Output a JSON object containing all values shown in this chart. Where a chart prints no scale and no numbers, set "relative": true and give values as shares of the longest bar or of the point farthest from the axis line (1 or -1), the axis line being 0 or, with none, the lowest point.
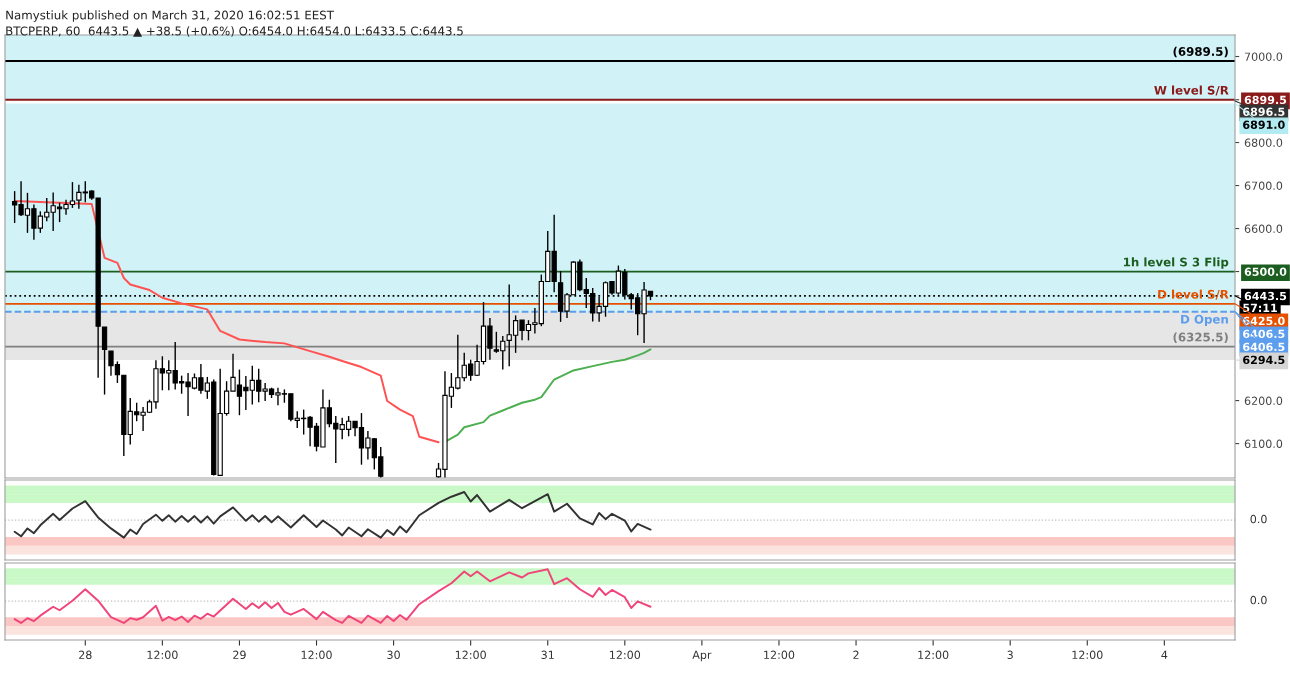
{
  "chart_data": [
    {
      "type": "candlestick",
      "title": "Namystiuk published on March 31, 2020 16:02:51 EEST",
      "subtitle": "BTCPERP, 60  6443.5 ▲ +38.5 (+0.6%) O:6454.0 H:6454.0 L:6433.5 C:6443.5",
      "x": [
        "2020-03-27T13:00",
        "2020-03-27T14:00",
        "2020-03-27T15:00",
        "2020-03-27T16:00",
        "2020-03-27T17:00",
        "2020-03-27T18:00",
        "2020-03-27T19:00",
        "2020-03-27T20:00",
        "2020-03-27T21:00",
        "2020-03-27T22:00",
        "2020-03-27T23:00",
        "2020-03-28T00:00",
        "2020-03-28T01:00",
        "2020-03-28T02:00",
        "2020-03-28T03:00",
        "2020-03-28T04:00",
        "2020-03-28T05:00",
        "2020-03-28T06:00",
        "2020-03-28T07:00",
        "2020-03-28T08:00",
        "2020-03-28T09:00",
        "2020-03-28T10:00",
        "2020-03-28T11:00",
        "2020-03-28T12:00",
        "2020-03-28T13:00",
        "2020-03-28T14:00",
        "2020-03-28T15:00",
        "2020-03-28T16:00",
        "2020-03-28T17:00",
        "2020-03-28T18:00",
        "2020-03-28T19:00",
        "2020-03-28T20:00",
        "2020-03-28T21:00",
        "2020-03-28T22:00",
        "2020-03-28T23:00",
        "2020-03-29T00:00",
        "2020-03-29T01:00",
        "2020-03-29T02:00",
        "2020-03-29T03:00",
        "2020-03-29T04:00",
        "2020-03-29T05:00",
        "2020-03-29T06:00",
        "2020-03-29T07:00",
        "2020-03-29T08:00",
        "2020-03-29T09:00",
        "2020-03-29T10:00",
        "2020-03-29T11:00",
        "2020-03-29T12:00",
        "2020-03-29T13:00",
        "2020-03-29T14:00",
        "2020-03-29T15:00",
        "2020-03-29T16:00",
        "2020-03-29T17:00",
        "2020-03-29T18:00",
        "2020-03-29T19:00",
        "2020-03-29T20:00",
        "2020-03-29T21:00",
        "2020-03-29T22:00",
        "2020-03-30T07:00",
        "2020-03-30T08:00",
        "2020-03-30T09:00",
        "2020-03-30T10:00",
        "2020-03-30T11:00",
        "2020-03-30T12:00",
        "2020-03-30T13:00",
        "2020-03-30T14:00",
        "2020-03-30T15:00",
        "2020-03-30T16:00",
        "2020-03-30T17:00",
        "2020-03-30T18:00",
        "2020-03-30T19:00",
        "2020-03-30T20:00",
        "2020-03-30T21:00",
        "2020-03-30T22:00",
        "2020-03-30T23:00",
        "2020-03-31T00:00",
        "2020-03-31T01:00",
        "2020-03-31T02:00",
        "2020-03-31T03:00",
        "2020-03-31T04:00",
        "2020-03-31T05:00",
        "2020-03-31T06:00",
        "2020-03-31T07:00",
        "2020-03-31T08:00",
        "2020-03-31T09:00",
        "2020-03-31T10:00",
        "2020-03-31T11:00",
        "2020-03-31T12:00",
        "2020-03-31T13:00",
        "2020-03-31T14:00",
        "2020-03-31T15:00",
        "2020-03-31T16:00"
      ],
      "ohlc": [
        [
          6663,
          6687,
          6613,
          6655
        ],
        [
          6656,
          6710,
          6629,
          6632
        ],
        [
          6631,
          6683,
          6590,
          6646
        ],
        [
          6646,
          6656,
          6574,
          6601
        ],
        [
          6601,
          6640,
          6590,
          6629
        ],
        [
          6627,
          6671,
          6617,
          6638
        ],
        [
          6638,
          6684,
          6594,
          6653
        ],
        [
          6650,
          6660,
          6615,
          6646
        ],
        [
          6646,
          6667,
          6632,
          6656
        ],
        [
          6656,
          6708,
          6648,
          6664
        ],
        [
          6666,
          6702,
          6646,
          6684
        ],
        [
          6685,
          6710,
          6661,
          6683
        ],
        [
          6687,
          6689,
          6667,
          6671
        ],
        [
          6671,
          6671,
          6253,
          6373
        ],
        [
          6371,
          6371,
          6214,
          6319
        ],
        [
          6315,
          6315,
          6258,
          6281
        ],
        [
          6284,
          6291,
          6241,
          6260
        ],
        [
          6259,
          6259,
          6071,
          6121
        ],
        [
          6121,
          6206,
          6098,
          6175
        ],
        [
          6174,
          6195,
          6152,
          6167
        ],
        [
          6166,
          6185,
          6129,
          6173
        ],
        [
          6173,
          6202,
          6171,
          6197
        ],
        [
          6197,
          6294,
          6181,
          6274
        ],
        [
          6274,
          6303,
          6224,
          6264
        ],
        [
          6264,
          6294,
          6224,
          6270
        ],
        [
          6270,
          6336,
          6226,
          6241
        ],
        [
          6244,
          6258,
          6216,
          6241
        ],
        [
          6243,
          6264,
          6164,
          6232
        ],
        [
          6229,
          6263,
          6226,
          6253
        ],
        [
          6253,
          6285,
          6216,
          6224
        ],
        [
          6222,
          6255,
          6204,
          6241
        ],
        [
          6243,
          6249,
          6026,
          6028
        ],
        [
          6026,
          6274,
          6026,
          6170
        ],
        [
          6170,
          6245,
          6165,
          6222
        ],
        [
          6222,
          6309,
          6222,
          6254
        ],
        [
          6236,
          6272,
          6166,
          6210
        ],
        [
          6231,
          6257,
          6178,
          6223
        ],
        [
          6224,
          6281,
          6191,
          6247
        ],
        [
          6247,
          6274,
          6196,
          6222
        ],
        [
          6222,
          6241,
          6199,
          6227
        ],
        [
          6227,
          6230,
          6206,
          6214
        ],
        [
          6213,
          6230,
          6189,
          6218
        ],
        [
          6216,
          6226,
          6195,
          6215
        ],
        [
          6216,
          6216,
          6152,
          6157
        ],
        [
          6154,
          6175,
          6136,
          6159
        ],
        [
          6159,
          6179,
          6121,
          6158
        ],
        [
          6161,
          6164,
          6094,
          6138
        ],
        [
          6140,
          6148,
          6082,
          6094
        ],
        [
          6092,
          6226,
          6092,
          6183
        ],
        [
          6183,
          6202,
          6138,
          6146
        ],
        [
          6147,
          6164,
          6055,
          6134
        ],
        [
          6133,
          6160,
          6110,
          6144
        ],
        [
          6133,
          6164,
          6117,
          6152
        ],
        [
          6152,
          6152,
          6117,
          6137
        ],
        [
          6137,
          6171,
          6051,
          6090
        ],
        [
          6090,
          6129,
          6063,
          6113
        ],
        [
          6111,
          6113,
          6040,
          6067
        ],
        [
          6069,
          6092,
          6021,
          6024
        ],
        [
          6023,
          6055,
          6021,
          6041
        ],
        [
          6040,
          6268,
          6021,
          6212
        ],
        [
          6210,
          6264,
          6183,
          6231
        ],
        [
          6229,
          6353,
          6226,
          6253
        ],
        [
          6253,
          6311,
          6245,
          6282
        ],
        [
          6285,
          6295,
          6246,
          6259
        ],
        [
          6259,
          6330,
          6257,
          6291
        ],
        [
          6291,
          6429,
          6284,
          6373
        ],
        [
          6373,
          6392,
          6295,
          6322
        ],
        [
          6318,
          6360,
          6311,
          6315
        ],
        [
          6316,
          6350,
          6272,
          6338
        ],
        [
          6340,
          6470,
          6280,
          6353
        ],
        [
          6352,
          6398,
          6311,
          6386
        ],
        [
          6387,
          6387,
          6340,
          6363
        ],
        [
          6363,
          6387,
          6340,
          6377
        ],
        [
          6377,
          6415,
          6356,
          6381
        ],
        [
          6379,
          6493,
          6373,
          6477
        ],
        [
          6477,
          6594,
          6477,
          6547
        ],
        [
          6547,
          6632,
          6452,
          6477
        ],
        [
          6474,
          6501,
          6383,
          6408
        ],
        [
          6408,
          6450,
          6392,
          6446
        ],
        [
          6446,
          6524,
          6446,
          6522
        ],
        [
          6522,
          6528,
          6454,
          6458
        ],
        [
          6458,
          6485,
          6415,
          6449
        ],
        [
          6449,
          6462,
          6384,
          6404
        ],
        [
          6404,
          6441,
          6383,
          6419
        ],
        [
          6419,
          6477,
          6395,
          6474
        ],
        [
          6477,
          6477,
          6446,
          6450
        ],
        [
          6450,
          6514,
          6446,
          6501
        ],
        [
          6498,
          6506,
          6435,
          6446
        ],
        [
          6446,
          6450,
          6412,
          6437
        ],
        [
          6439,
          6450,
          6352,
          6402
        ],
        [
          6402,
          6476,
          6334,
          6457
        ],
        [
          6454,
          6454,
          6433.5,
          6443.5
        ]
      ],
      "series": [
        {
          "type": "line",
          "color": "#ff5252",
          "x": [
            "2020-03-27T13:00",
            "2020-03-28T01:00",
            "2020-03-28T03:00",
            "2020-03-28T05:00",
            "2020-03-28T06:00",
            "2020-03-28T07:00",
            "2020-03-28T10:00",
            "2020-03-28T12:00",
            "2020-03-28T15:00",
            "2020-03-28T19:00",
            "2020-03-28T21:00",
            "2020-03-29T00:00",
            "2020-03-29T04:00",
            "2020-03-29T07:00",
            "2020-03-29T11:00",
            "2020-03-29T14:00",
            "2020-03-29T16:00",
            "2020-03-29T19:00",
            "2020-03-29T22:00",
            "2020-03-29T23:00",
            "2020-03-30T01:00",
            "2020-03-30T03:00",
            "2020-03-30T04:00",
            "2020-03-30T07:00"
          ],
          "values": [
            6664,
            6657,
            6532,
            6520,
            6485,
            6470,
            6457,
            6439,
            6426,
            6412,
            6362,
            6342,
            6336,
            6333,
            6315,
            6302,
            6292,
            6278,
            6258,
            6199,
            6179,
            6164,
            6116,
            6103
          ]
        },
        {
          "type": "line",
          "color": "#4caf50",
          "x": [
            "2020-03-30T08:00",
            "2020-03-30T10:00",
            "2020-03-30T11:00",
            "2020-03-30T14:00",
            "2020-03-30T15:00",
            "2020-03-30T17:00",
            "2020-03-30T20:00",
            "2020-03-30T22:00",
            "2020-03-30T23:00",
            "2020-03-31T01:00",
            "2020-03-31T04:00",
            "2020-03-31T07:00",
            "2020-03-31T10:00",
            "2020-03-31T12:00",
            "2020-03-31T14:00",
            "2020-03-31T15:00",
            "2020-03-31T16:00"
          ],
          "values": [
            6104,
            6121,
            6138,
            6150,
            6165,
            6177,
            6195,
            6202,
            6208,
            6249,
            6270,
            6280,
            6290,
            6295,
            6305,
            6311,
            6319
          ]
        }
      ],
      "xlim": [
        "2020-03-27T11:30",
        "2020-04-04T11:00"
      ],
      "ylim": [
        6020,
        7050
      ],
      "yticks": [
        {
          "value": 6100,
          "label": "6100.0"
        },
        {
          "value": 6200,
          "label": "6200.0"
        },
        {
          "value": 6443.5,
          "label": "6443.5"
        },
        {
          "value": 6500,
          "label": "6500.0"
        },
        {
          "value": 6600,
          "label": "6600.0"
        },
        {
          "value": 6700,
          "label": "6700.0"
        },
        {
          "value": 6800,
          "label": "6800.0"
        },
        {
          "value": 6899.5,
          "label": "6899.5"
        },
        {
          "value": 7000,
          "label": "7000.0"
        }
      ],
      "tick_labels": "y",
      "bands": [
        {
          "axis": "y",
          "from": 6406.5,
          "to": 6891,
          "color": "#b2ebf2"
        },
        {
          "axis": "y",
          "from": 6294.5,
          "to": 6406.5,
          "color": "#d6d6d6"
        },
        {
          "axis": "y",
          "from": 6899.5,
          "to": 7050,
          "color": "#b2ebf2"
        }
      ],
      "ref_lines": [
        {
          "axis": "y",
          "value": 6989.5,
          "label": "(6989.5)",
          "color": "#000000"
        },
        {
          "axis": "y",
          "value": 6899.5,
          "label": "W level S/R",
          "color": "#8b1a1a"
        },
        {
          "axis": "y",
          "value": 6500,
          "label": "1h level S 3 Flip",
          "color": "#1b5e20"
        },
        {
          "axis": "y",
          "value": 6443.5,
          "color": "#000000",
          "line_style": "dotted"
        },
        {
          "axis": "y",
          "value": 6425,
          "label": "D level S/R",
          "color": "#e65100"
        },
        {
          "axis": "y",
          "value": 6406.5,
          "label": "D Open",
          "color": "#5c9ded",
          "line_style": "dashed"
        },
        {
          "axis": "y",
          "value": 6325.5,
          "label": "(6325.5)",
          "color": "#808080"
        }
      ],
      "annotations": [
        {
          "text": "6896.5",
          "x": "2020-04-04T11:00",
          "y": 6896.5
        },
        {
          "text": "6891.0",
          "x": "2020-04-04T11:00",
          "y": 6891
        },
        {
          "text": "57:11",
          "x": "2020-04-04T11:00",
          "y": 6443.5
        },
        {
          "text": "6425.0",
          "x": "2020-04-04T11:00",
          "y": 6425
        },
        {
          "text": "6406.5",
          "x": "2020-04-04T11:00",
          "y": 6406.5
        },
        {
          "text": "6406.5",
          "x": "2020-04-04T11:00",
          "y": 6406.5
        },
        {
          "text": "6294.5",
          "x": "2020-04-04T11:00",
          "y": 6294.5
        }
      ]
    },
    {
      "type": "line",
      "relative": true,
      "tick_labels": false,
      "xlim": [
        "2020-03-27T11:30",
        "2020-04-04T11:00"
      ],
      "series": [
        {
          "color": "#333333",
          "x": [
            "2020-03-27T13:00",
            "2020-03-27T14:00",
            "2020-03-27T15:00",
            "2020-03-27T16:00",
            "2020-03-27T17:00",
            "2020-03-27T19:00",
            "2020-03-27T20:00",
            "2020-03-27T22:00",
            "2020-03-28T00:00",
            "2020-03-28T02:00",
            "2020-03-28T04:00",
            "2020-03-28T06:00",
            "2020-03-28T07:00",
            "2020-03-28T08:00",
            "2020-03-28T09:00",
            "2020-03-28T11:00",
            "2020-03-28T12:00",
            "2020-03-28T13:00",
            "2020-03-28T14:00",
            "2020-03-28T15:00",
            "2020-03-28T16:00",
            "2020-03-28T17:00",
            "2020-03-28T18:00",
            "2020-03-28T19:00",
            "2020-03-28T20:00",
            "2020-03-28T21:00",
            "2020-03-28T23:00",
            "2020-03-29T01:00",
            "2020-03-29T02:00",
            "2020-03-29T03:00",
            "2020-03-29T04:00",
            "2020-03-29T05:00",
            "2020-03-29T06:00",
            "2020-03-29T08:00",
            "2020-03-29T10:00",
            "2020-03-29T12:00",
            "2020-03-29T13:00",
            "2020-03-29T15:00",
            "2020-03-29T16:00",
            "2020-03-29T17:00",
            "2020-03-29T19:00",
            "2020-03-29T20:00",
            "2020-03-29T22:00",
            "2020-03-29T23:00",
            "2020-03-30T00:00",
            "2020-03-30T01:00",
            "2020-03-30T02:00",
            "2020-03-30T04:00",
            "2020-03-30T07:00",
            "2020-03-30T09:00",
            "2020-03-30T11:00",
            "2020-03-30T12:00",
            "2020-03-30T13:00",
            "2020-03-30T15:00",
            "2020-03-30T18:00",
            "2020-03-30T20:00",
            "2020-03-31T00:00",
            "2020-03-31T01:00",
            "2020-03-31T03:00",
            "2020-03-31T05:00",
            "2020-03-31T07:00",
            "2020-03-31T08:00",
            "2020-03-31T09:00",
            "2020-03-31T10:00",
            "2020-03-31T12:00",
            "2020-03-31T13:00",
            "2020-03-31T14:00",
            "2020-03-31T16:00"
          ],
          "values": [
            -0.42,
            -0.58,
            -0.3,
            -0.47,
            -0.19,
            0.22,
            0.0,
            0.41,
            0.67,
            0.09,
            -0.3,
            -0.63,
            -0.34,
            -0.5,
            -0.14,
            0.19,
            -0.03,
            0.17,
            -0.06,
            0.14,
            -0.06,
            0.14,
            -0.09,
            0.13,
            -0.13,
            0.13,
            0.45,
            -0.03,
            0.17,
            -0.06,
            0.14,
            -0.08,
            0.13,
            -0.27,
            0.17,
            -0.25,
            -0.02,
            -0.34,
            -0.55,
            -0.27,
            -0.58,
            -0.33,
            -0.63,
            -0.36,
            -0.53,
            -0.23,
            -0.44,
            0.17,
            0.61,
            0.83,
            1.0,
            0.66,
            0.89,
            0.3,
            0.72,
            0.42,
            0.92,
            0.3,
            0.58,
            0.06,
            -0.16,
            0.25,
            0.03,
            0.22,
            -0.02,
            -0.41,
            -0.14,
            -0.34
          ]
        }
      ],
      "bands": [
        {
          "axis": "y",
          "from": 0.61,
          "to": 0.92,
          "color": "#a5f5a0"
        },
        {
          "axis": "y",
          "from": 0.92,
          "to": 1.23,
          "color": "#a5f5a0"
        },
        {
          "axis": "y",
          "from": -0.92,
          "to": -0.61,
          "color": "#f7a29f"
        },
        {
          "axis": "y",
          "from": -1.23,
          "to": -0.92,
          "color": "#f9d0c8"
        }
      ],
      "ref_lines": [
        {
          "axis": "y",
          "value": 0,
          "label": "0.0",
          "color": "#bdbdbd",
          "line_style": "dotted"
        }
      ]
    },
    {
      "type": "line",
      "relative": true,
      "tick_labels": "x",
      "xlim": [
        "2020-03-27T11:30",
        "2020-04-04T11:00"
      ],
      "xticks": [
        {
          "value": "2020-03-28",
          "label": "28"
        },
        {
          "value": "2020-03-28T12:00",
          "label": "12:00"
        },
        {
          "value": "2020-03-29",
          "label": "29"
        },
        {
          "value": "2020-03-29T12:00",
          "label": "12:00"
        },
        {
          "value": "2020-03-30",
          "label": "30"
        },
        {
          "value": "2020-03-30T12:00",
          "label": "12:00"
        },
        {
          "value": "2020-03-31",
          "label": "31"
        },
        {
          "value": "2020-03-31T12:00",
          "label": "12:00"
        },
        {
          "value": "2020-04-01",
          "label": "Apr"
        },
        {
          "value": "2020-04-01T12:00",
          "label": "12:00"
        },
        {
          "value": "2020-04-02",
          "label": "2"
        },
        {
          "value": "2020-04-02T12:00",
          "label": "12:00"
        },
        {
          "value": "2020-04-03",
          "label": "3"
        },
        {
          "value": "2020-04-03T12:00",
          "label": "12:00"
        },
        {
          "value": "2020-04-04",
          "label": "4"
        }
      ],
      "series": [
        {
          "color": "#f0457a",
          "x": [
            "2020-03-27T13:00",
            "2020-03-27T14:00",
            "2020-03-27T15:00",
            "2020-03-27T16:00",
            "2020-03-27T17:00",
            "2020-03-27T19:00",
            "2020-03-27T20:00",
            "2020-03-27T22:00",
            "2020-03-28T00:00",
            "2020-03-28T02:00",
            "2020-03-28T04:00",
            "2020-03-28T06:00",
            "2020-03-28T07:00",
            "2020-03-28T08:00",
            "2020-03-28T09:00",
            "2020-03-28T11:00",
            "2020-03-28T12:00",
            "2020-03-28T13:00",
            "2020-03-28T14:00",
            "2020-03-28T15:00",
            "2020-03-28T16:00",
            "2020-03-28T17:00",
            "2020-03-28T18:00",
            "2020-03-28T19:00",
            "2020-03-28T20:00",
            "2020-03-28T23:00",
            "2020-03-29T01:00",
            "2020-03-29T02:00",
            "2020-03-29T03:00",
            "2020-03-29T04:00",
            "2020-03-29T05:00",
            "2020-03-29T06:00",
            "2020-03-29T07:00",
            "2020-03-29T08:00",
            "2020-03-29T10:00",
            "2020-03-29T12:00",
            "2020-03-29T13:00",
            "2020-03-29T15:00",
            "2020-03-29T16:00",
            "2020-03-29T17:00",
            "2020-03-29T19:00",
            "2020-03-29T20:00",
            "2020-03-29T22:00",
            "2020-03-29T23:00",
            "2020-03-30T00:00",
            "2020-03-30T01:00",
            "2020-03-30T02:00",
            "2020-03-30T04:00",
            "2020-03-30T07:00",
            "2020-03-30T09:00",
            "2020-03-30T11:00",
            "2020-03-30T12:00",
            "2020-03-30T13:00",
            "2020-03-30T15:00",
            "2020-03-30T18:00",
            "2020-03-30T20:00",
            "2020-03-30T21:00",
            "2020-03-31T00:00",
            "2020-03-31T01:00",
            "2020-03-31T03:00",
            "2020-03-31T05:00",
            "2020-03-31T07:00",
            "2020-03-31T08:00",
            "2020-03-31T09:00",
            "2020-03-31T10:00",
            "2020-03-31T12:00",
            "2020-03-31T13:00",
            "2020-03-31T14:00",
            "2020-03-31T16:00"
          ],
          "values": [
            -0.57,
            -0.69,
            -0.54,
            -0.63,
            -0.46,
            -0.18,
            -0.29,
            0.01,
            0.37,
            0.01,
            -0.51,
            -0.69,
            -0.54,
            -0.59,
            -0.51,
            -0.15,
            -0.62,
            -0.5,
            -0.6,
            -0.49,
            -0.66,
            -0.46,
            -0.56,
            -0.4,
            -0.49,
            0.07,
            -0.25,
            -0.07,
            -0.22,
            -0.04,
            -0.22,
            -0.06,
            -0.34,
            -0.43,
            -0.25,
            -0.57,
            -0.34,
            -0.6,
            -0.69,
            -0.47,
            -0.69,
            -0.46,
            -0.69,
            -0.47,
            -0.63,
            -0.44,
            -0.59,
            -0.1,
            0.31,
            0.56,
            0.93,
            0.78,
            0.93,
            0.62,
            0.9,
            0.74,
            0.87,
            1.0,
            0.53,
            0.72,
            0.37,
            0.13,
            0.41,
            0.19,
            0.35,
            0.12,
            -0.22,
            -0.01,
            -0.18
          ]
        }
      ],
      "bands": [
        {
          "axis": "y",
          "from": 0.51,
          "to": 0.75,
          "color": "#a5f5a0"
        },
        {
          "axis": "y",
          "from": 0.75,
          "to": 1.03,
          "color": "#a5f5a0"
        },
        {
          "axis": "y",
          "from": -0.79,
          "to": -0.51,
          "color": "#f7a29f"
        },
        {
          "axis": "y",
          "from": -1.06,
          "to": -0.79,
          "color": "#f9d0c8"
        }
      ],
      "ref_lines": [
        {
          "axis": "y",
          "value": 0,
          "label": "0.0",
          "color": "#bdbdbd",
          "line_style": "dotted"
        }
      ]
    }
  ]
}
